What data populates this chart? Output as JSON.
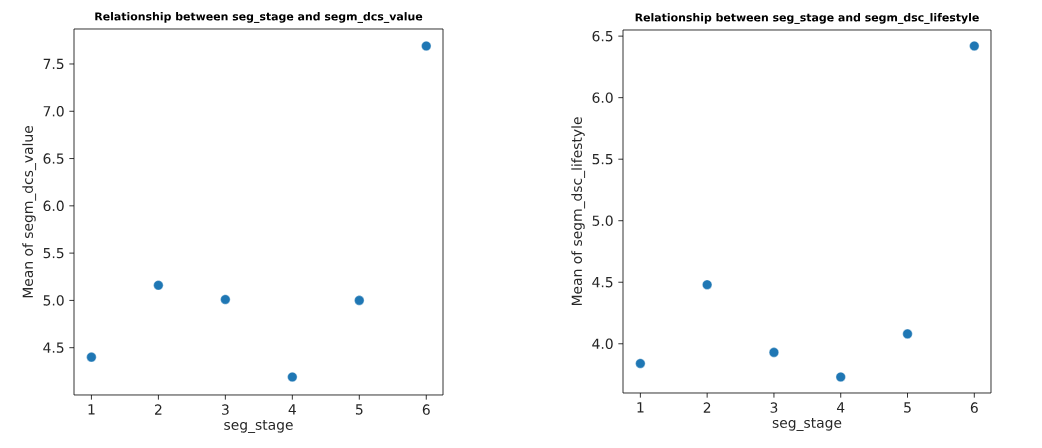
{
  "chart_data": [
    {
      "type": "scatter",
      "title": "Relationship between seg_stage and segm_dcs_value",
      "xlabel": "seg_stage",
      "ylabel": "Mean of segm_dcs_value",
      "color": "#1f77b4",
      "x": [
        1,
        2,
        3,
        4,
        5,
        6
      ],
      "values": [
        4.4,
        5.16,
        5.01,
        4.19,
        5.0,
        7.69
      ],
      "xlim": [
        0.74,
        6.25
      ],
      "ylim": [
        4.0,
        7.87
      ],
      "xticks": [
        1,
        2,
        3,
        4,
        5,
        6
      ],
      "yticks": [
        {
          "value": 4.5,
          "label": "4.5"
        },
        {
          "value": 5,
          "label": "5.0"
        },
        {
          "value": 5.5,
          "label": "5.5"
        },
        {
          "value": 6,
          "label": "6.0"
        },
        {
          "value": 6.5,
          "label": "6.5"
        },
        {
          "value": 7,
          "label": "7.0"
        },
        {
          "value": 7.5,
          "label": "7.5"
        }
      ]
    },
    {
      "type": "scatter",
      "title": "Relationship between seg_stage and segm_dsc_lifestyle",
      "xlabel": "seg_stage",
      "ylabel": "Mean of segm_dsc_lifestyle",
      "color": "#1f77b4",
      "x": [
        1,
        2,
        3,
        4,
        5,
        6
      ],
      "values": [
        3.84,
        4.48,
        3.93,
        3.73,
        4.08,
        6.42
      ],
      "xlim": [
        0.74,
        6.25
      ],
      "ylim": [
        3.6,
        6.55
      ],
      "xticks": [
        1,
        2,
        3,
        4,
        5,
        6
      ],
      "yticks": [
        {
          "value": 4,
          "label": "4.0"
        },
        {
          "value": 4.5,
          "label": "4.5"
        },
        {
          "value": 5,
          "label": "5.0"
        },
        {
          "value": 5.5,
          "label": "5.5"
        },
        {
          "value": 6,
          "label": "6.0"
        },
        {
          "value": 6.5,
          "label": "6.5"
        }
      ]
    }
  ]
}
